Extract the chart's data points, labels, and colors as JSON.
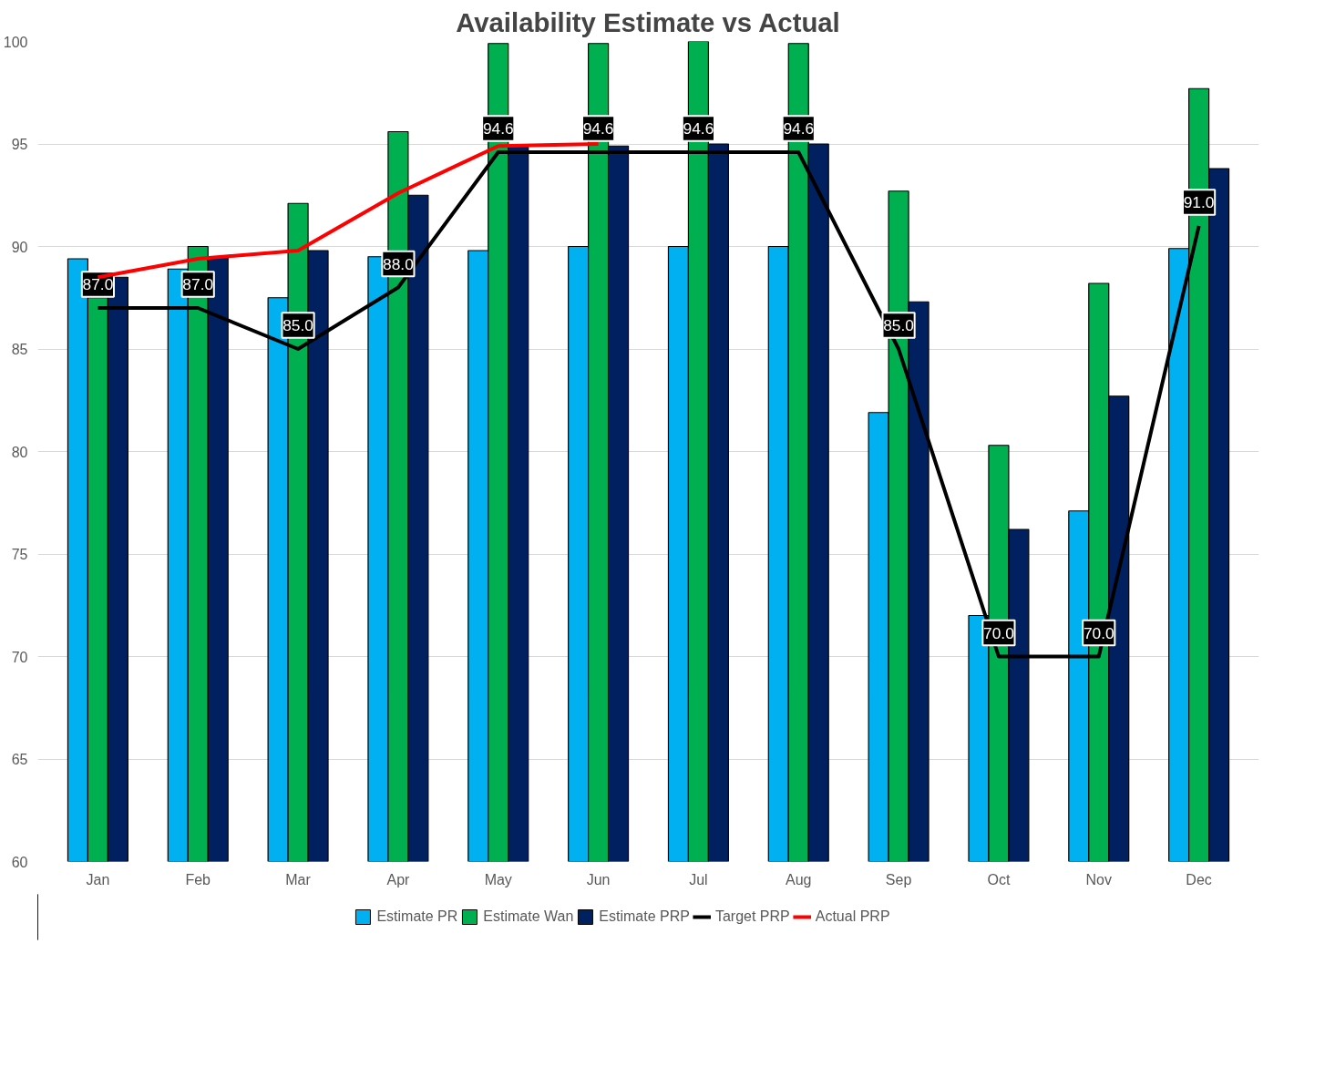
{
  "chart_data": {
    "type": "bar",
    "title": "Availability Estimate vs Actual",
    "categories": [
      "Jan",
      "Feb",
      "Mar",
      "Apr",
      "May",
      "Jun",
      "Jul",
      "Aug",
      "Sep",
      "Oct",
      "Nov",
      "Dec"
    ],
    "series": [
      {
        "name": "Estimate PR",
        "color": "#00b0f0",
        "values": [
          89.4,
          88.9,
          87.5,
          89.5,
          89.8,
          90.0,
          90.0,
          90.0,
          81.9,
          72.0,
          77.1,
          89.9
        ]
      },
      {
        "name": "Estimate Wan",
        "color": "#00b050",
        "values": [
          87.5,
          90.0,
          92.1,
          95.6,
          99.9,
          99.9,
          100.0,
          99.9,
          92.7,
          80.3,
          88.2,
          97.7
        ]
      },
      {
        "name": "Estimate PRP",
        "color": "#002060",
        "values": [
          88.5,
          89.5,
          89.8,
          92.5,
          94.9,
          94.9,
          95.0,
          95.0,
          87.3,
          76.2,
          82.7,
          93.8
        ]
      },
      {
        "name": "Target PRP",
        "type": "line",
        "color": "#000000",
        "values": [
          87,
          87,
          85,
          88,
          94.6,
          94.6,
          94.6,
          94.6,
          85,
          70,
          70,
          91
        ],
        "value_labels": [
          "87.0",
          "87.0",
          "85.0",
          "88.0",
          "94.6",
          "94.6",
          "94.6",
          "94.6",
          "85.0",
          "70.0",
          "70.0",
          "91.0"
        ]
      },
      {
        "name": "Actual PRP",
        "type": "line",
        "color": "#ff0000",
        "values": [
          88.5,
          89.4,
          89.8,
          92.6,
          94.9,
          95.0,
          null,
          null,
          null,
          null,
          null,
          null
        ]
      }
    ],
    "ylim": [
      60,
      100
    ],
    "yticks": [
      60,
      65,
      70,
      75,
      80,
      85,
      90,
      95,
      100
    ],
    "grid": "y",
    "legend": "bottom",
    "marker": "none",
    "line_style": "solid"
  }
}
